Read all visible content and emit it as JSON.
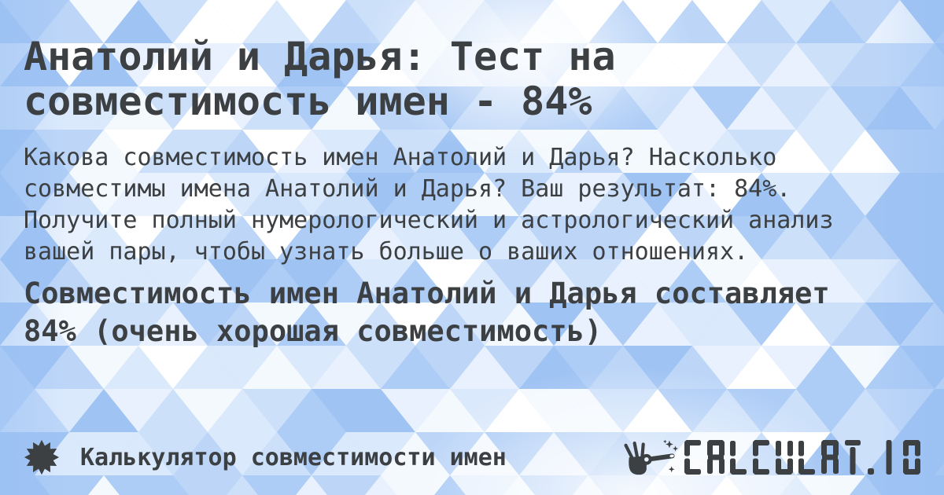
{
  "card": {
    "title": "Анатолий и Дарья: Тест на совместимость имен - 84%",
    "description": "Какова совместимость имен Анатолий и Дарья? Насколько совместимы имена Анатолий и Дарья? Ваш результат: 84%. Получите полный нумерологический и астрологический анализ вашей пары, чтобы узнать больше о ваших отношениях.",
    "result_statement": "Совместимость имен Анатолий и Дарья составляет 84% (очень хорошая совместимость)",
    "names": [
      "Анатолий",
      "Дарья"
    ],
    "compatibility_percent": "84%",
    "verdict": "очень хорошая совместимость"
  },
  "footer": {
    "site_label": "Калькулятор совместимости имен",
    "brand_text": "CALCULAT.IO",
    "icons": {
      "badge": "starburst-icon",
      "brand": "magic-wand-icon"
    }
  },
  "theme": {
    "text_color": "#3c4043",
    "icon_color": "#3c4043",
    "triangle_palette": [
      "#ffffff",
      "#f4f9fe",
      "#e8f1fd",
      "#dbe9fc",
      "#cce0fa",
      "#bdd6f8",
      "#adccf6",
      "#9fc3f3"
    ]
  }
}
